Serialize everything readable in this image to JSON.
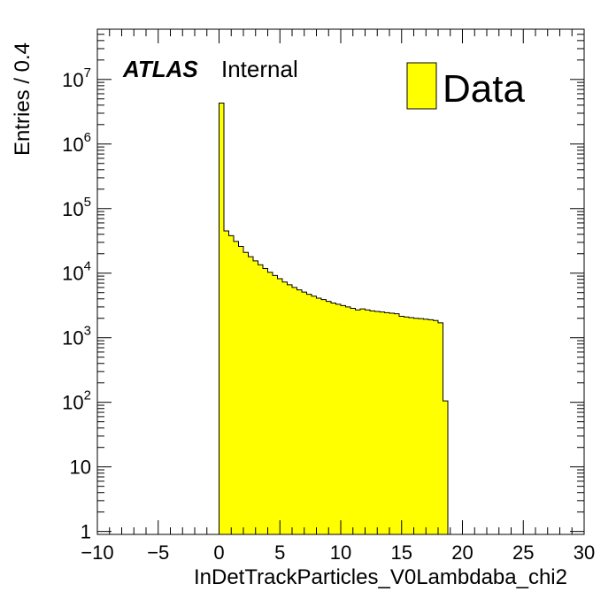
{
  "chart_data": {
    "type": "bar",
    "xlabel": "InDetTrackParticles_V0Lambdaba_chi2",
    "ylabel": "Entries / 0.4",
    "xlim": [
      -10,
      30
    ],
    "ylim": [
      0.9,
      60000000
    ],
    "log_y": true,
    "bin_width": 0.4,
    "x_ticks": [
      -10,
      -5,
      0,
      5,
      10,
      15,
      20,
      25,
      30
    ],
    "x_tick_labels": [
      "−10",
      "−5",
      "0",
      "5",
      "10",
      "15",
      "20",
      "25",
      "30"
    ],
    "y_ticks": [
      {
        "value": 1,
        "base": "1",
        "exp": ""
      },
      {
        "value": 10,
        "base": "10",
        "exp": ""
      },
      {
        "value": 100,
        "base": "10",
        "exp": "2"
      },
      {
        "value": 1000,
        "base": "10",
        "exp": "3"
      },
      {
        "value": 10000,
        "base": "10",
        "exp": "4"
      },
      {
        "value": 100000,
        "base": "10",
        "exp": "5"
      },
      {
        "value": 1000000,
        "base": "10",
        "exp": "6"
      },
      {
        "value": 10000000,
        "base": "10",
        "exp": "7"
      }
    ],
    "grid": false,
    "legend_position": "top-right",
    "series": [
      {
        "name": "Data",
        "color": "#ffff00",
        "bin_lows": [
          0.0,
          0.4,
          0.8,
          1.2,
          1.6,
          2.0,
          2.4,
          2.8,
          3.2,
          3.6,
          4.0,
          4.4,
          4.8,
          5.2,
          5.6,
          6.0,
          6.4,
          6.8,
          7.2,
          7.6,
          8.0,
          8.4,
          8.8,
          9.2,
          9.6,
          10.0,
          10.4,
          10.8,
          11.2,
          11.6,
          12.0,
          12.4,
          12.8,
          13.2,
          13.6,
          14.0,
          14.4,
          14.8,
          15.2,
          15.6,
          16.0,
          16.4,
          16.8,
          17.2,
          17.6,
          18.0,
          18.4
        ],
        "values": [
          4300000,
          45000,
          38000,
          31000,
          26000,
          21000,
          18000,
          15500,
          13500,
          11800,
          10300,
          9200,
          8200,
          7300,
          6600,
          6000,
          5500,
          5100,
          4700,
          4400,
          4100,
          3900,
          3650,
          3450,
          3300,
          3150,
          3000,
          2850,
          2700,
          2800,
          2700,
          2600,
          2550,
          2500,
          2450,
          2400,
          2350,
          2150,
          2100,
          2050,
          2000,
          1980,
          1940,
          1900,
          1850,
          1700,
          105
        ]
      }
    ]
  },
  "annotation": {
    "atlas": "ATLAS",
    "internal": "Internal"
  }
}
